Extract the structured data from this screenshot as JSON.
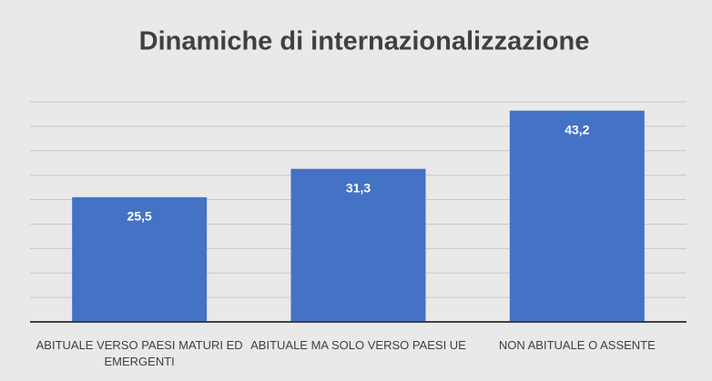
{
  "chart_data": {
    "type": "bar",
    "title": "Dinamiche di internazionalizzazione",
    "categories": [
      "ABITUALE VERSO PAESI MATURI ED EMERGENTI",
      "ABITUALE MA SOLO VERSO PAESI UE",
      "NON ABITUALE O ASSENTE"
    ],
    "values": [
      25.5,
      31.3,
      43.2
    ],
    "value_labels": [
      "25,5",
      "31,3",
      "43,2"
    ],
    "color": "#4472c4",
    "ylim": [
      0,
      45
    ],
    "yticks": [
      0,
      5,
      10,
      15,
      20,
      25,
      30,
      35,
      40,
      45
    ],
    "grid": true
  }
}
